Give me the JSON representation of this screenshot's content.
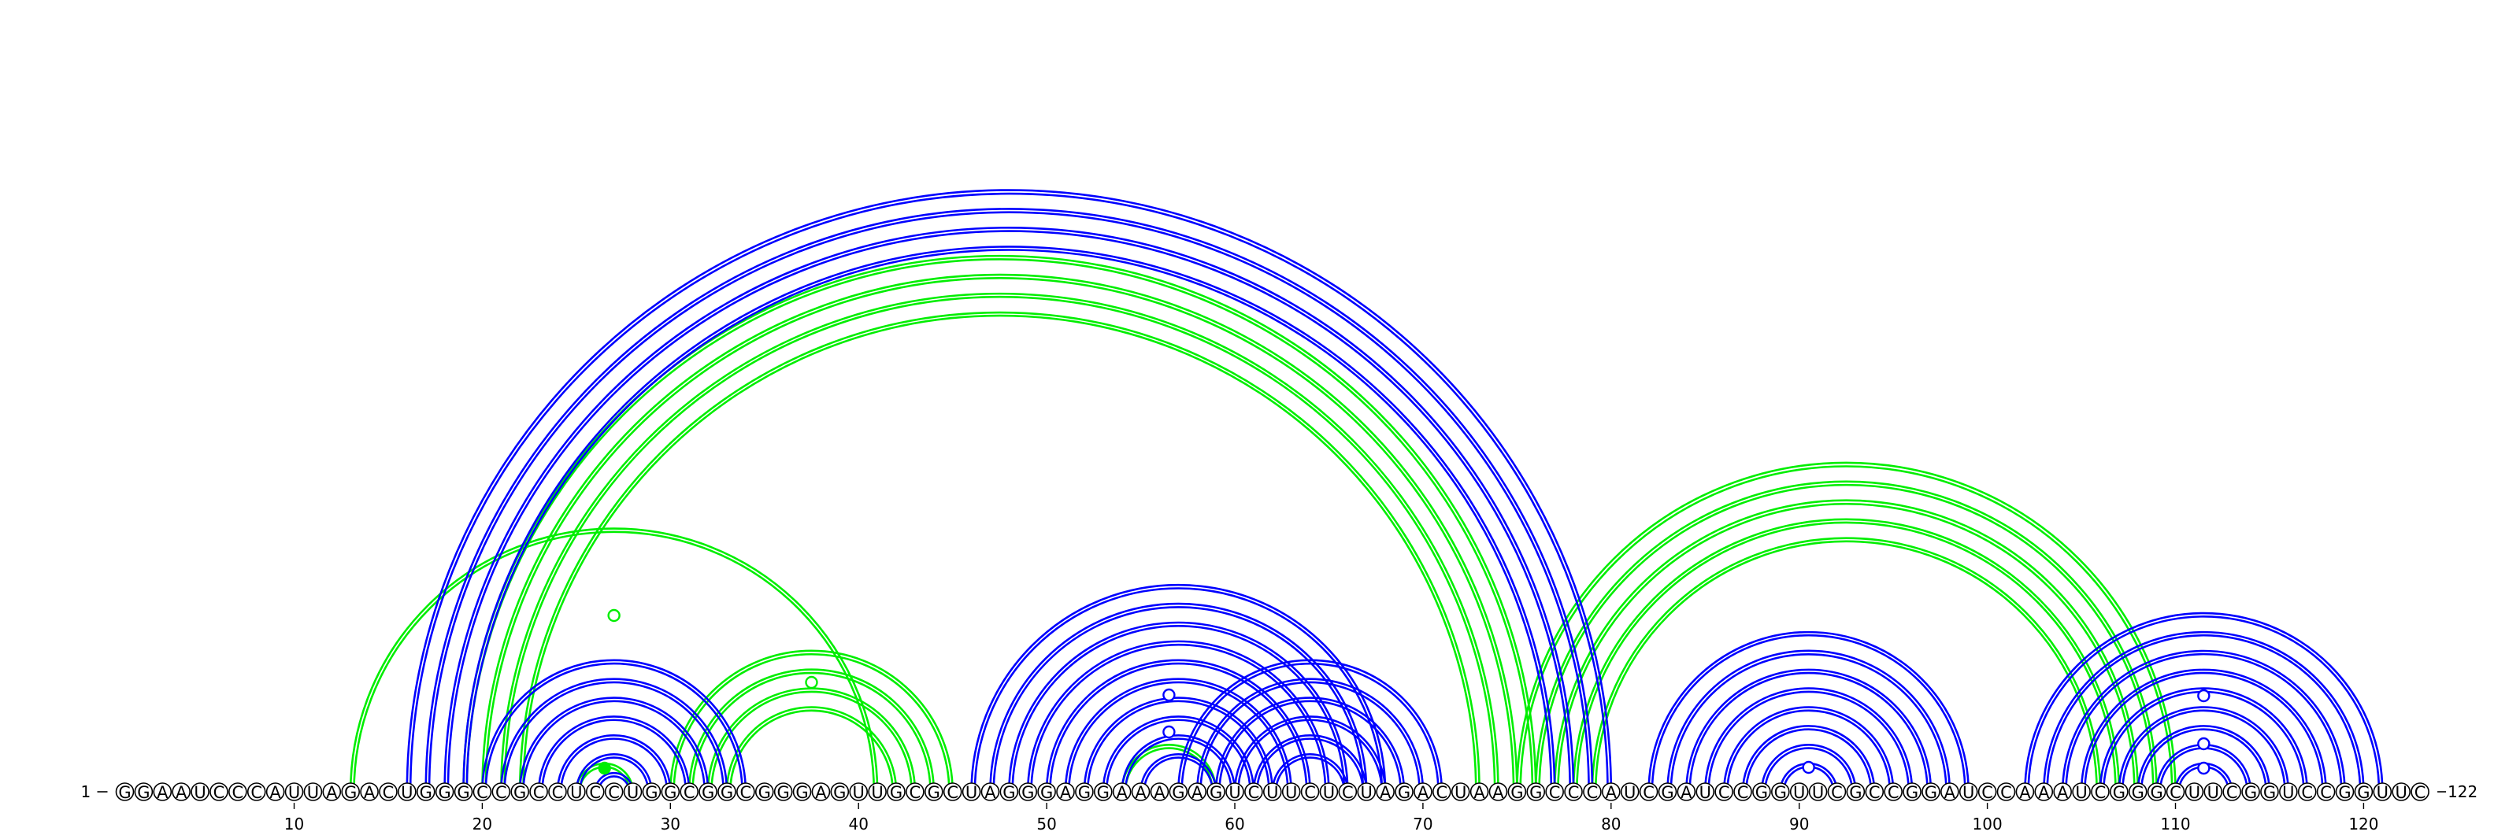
{
  "diagram": {
    "type": "rna-arc-diagram",
    "start_label": "1",
    "end_label": "122",
    "sequence": "GGAAUCCCAUUAGACUGGGCCGCCUCCUGGCGGCGGGAGUUGCGCUAGGGAGGAAAGAGUCUUCUCUAGACUAAGGCCCAUCGAUCCGGUUCGCCGGAUCCAAAUCGGGCUUCGGUCCGGUUC",
    "tick_labels": [
      10,
      20,
      30,
      40,
      50,
      60,
      70,
      80,
      90,
      100,
      110,
      120
    ],
    "colors": {
      "blue_structure": "#0000ff",
      "green_structure": "#00ee00"
    },
    "blue_pairs": [
      [
        16,
        80
      ],
      [
        17,
        79
      ],
      [
        18,
        78
      ],
      [
        19,
        77
      ],
      [
        20,
        34
      ],
      [
        21,
        33
      ],
      [
        22,
        32
      ],
      [
        23,
        31
      ],
      [
        24,
        30
      ],
      [
        25,
        29
      ],
      [
        26,
        28
      ],
      [
        46,
        68
      ],
      [
        47,
        67
      ],
      [
        48,
        66
      ],
      [
        49,
        65
      ],
      [
        50,
        64
      ],
      [
        51,
        63
      ],
      [
        52,
        62
      ],
      [
        53,
        61
      ],
      [
        54,
        60
      ],
      [
        55,
        59
      ],
      [
        57,
        71
      ],
      [
        58,
        70
      ],
      [
        59,
        69
      ],
      [
        60,
        68
      ],
      [
        61,
        67
      ],
      [
        62,
        66
      ],
      [
        82,
        99
      ],
      [
        83,
        98
      ],
      [
        84,
        97
      ],
      [
        85,
        96
      ],
      [
        86,
        95
      ],
      [
        87,
        94
      ],
      [
        88,
        93
      ],
      [
        89,
        92
      ],
      [
        102,
        121
      ],
      [
        103,
        120
      ],
      [
        104,
        119
      ],
      [
        105,
        118
      ],
      [
        106,
        117
      ],
      [
        107,
        116
      ],
      [
        108,
        115
      ],
      [
        109,
        114
      ],
      [
        110,
        113
      ]
    ],
    "green_pairs": [
      [
        13,
        41
      ],
      [
        19,
        76
      ],
      [
        20,
        75
      ],
      [
        21,
        74
      ],
      [
        22,
        73
      ],
      [
        25,
        28
      ],
      [
        30,
        45
      ],
      [
        31,
        44
      ],
      [
        32,
        43
      ],
      [
        33,
        42
      ],
      [
        54,
        59
      ],
      [
        75,
        110
      ],
      [
        76,
        109
      ],
      [
        77,
        108
      ],
      [
        78,
        107
      ],
      [
        79,
        106
      ]
    ],
    "blue_markers": [
      56.5,
      56.5,
      90.5,
      111.5,
      111.5,
      111.5
    ],
    "green_markers": [
      {
        "pos": 27,
        "filled": false
      },
      {
        "pos": 37.5,
        "filled": false
      },
      {
        "pos": 26.5,
        "filled": true
      }
    ]
  }
}
